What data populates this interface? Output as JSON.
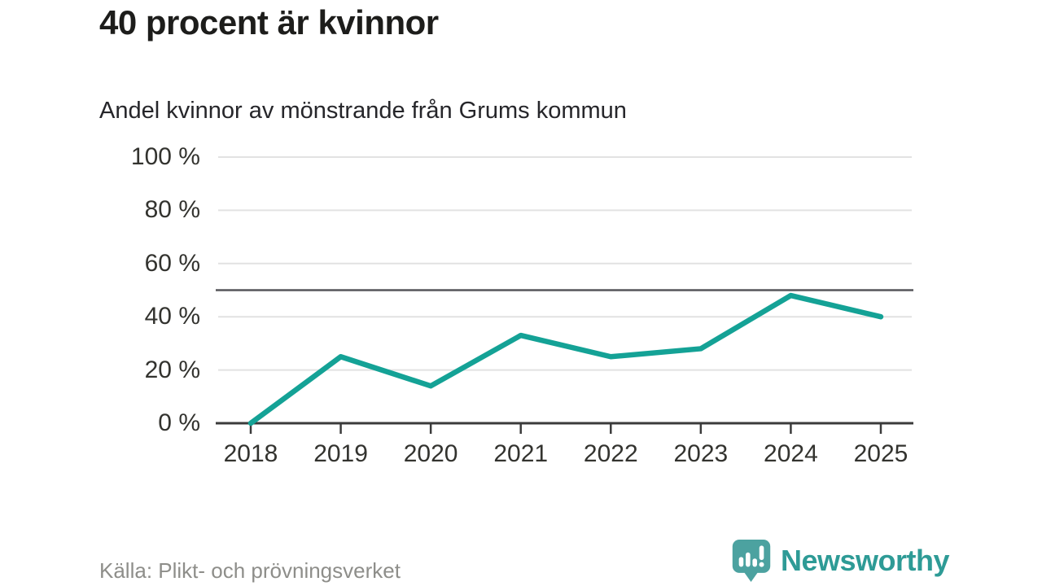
{
  "header": {
    "title": "40 procent är kvinnor",
    "subtitle": "Andel kvinnor av mönstrande från Grums kommun"
  },
  "chart_data": {
    "type": "line",
    "title": "40 procent är kvinnor",
    "subtitle": "Andel kvinnor av mönstrande från Grums kommun",
    "x": [
      2018,
      2019,
      2020,
      2021,
      2022,
      2023,
      2024,
      2025
    ],
    "series": [
      {
        "name": "Andel kvinnor av mönstrande",
        "values": [
          0,
          25,
          14,
          33,
          25,
          28,
          48,
          40
        ]
      }
    ],
    "unit": "%",
    "ylim": [
      0,
      100
    ],
    "yticks": [
      0,
      20,
      40,
      60,
      80,
      100
    ],
    "ytick_labels": [
      "0 %",
      "20 %",
      "40 %",
      "60 %",
      "80 %",
      "100 %"
    ],
    "reference_line": {
      "value": 50
    },
    "grid": true,
    "legend": "none",
    "line_color": "#14A296"
  },
  "footer": {
    "source": "Källa: Plikt- och prövningsverket",
    "brand": "Newsworthy"
  },
  "colors": {
    "accent_teal": "#14A296",
    "brand_teal": "#2E9B96",
    "brand_bubble": "#4CA2A0",
    "reference_line": "#56565A",
    "axis": "#3B3B3B",
    "gridline": "#E2E2E2",
    "title_text": "#1D1D1B",
    "muted_text": "#8E8E8A"
  }
}
